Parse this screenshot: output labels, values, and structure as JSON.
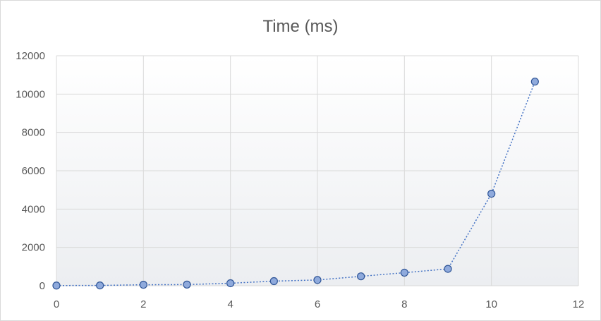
{
  "chart_data": {
    "type": "scatter",
    "title": "Time (ms)",
    "xlabel": "",
    "ylabel": "",
    "xlim": [
      0,
      12
    ],
    "ylim": [
      0,
      12000
    ],
    "x_ticks": [
      0,
      2,
      4,
      6,
      8,
      10,
      12
    ],
    "y_ticks": [
      0,
      2000,
      4000,
      6000,
      8000,
      10000,
      12000
    ],
    "grid": true,
    "lines": "dotted",
    "series": [
      {
        "x": [
          0,
          1,
          2,
          3,
          4,
          5,
          6,
          7,
          8,
          9,
          10,
          11
        ],
        "y": [
          10,
          15,
          50,
          60,
          130,
          240,
          300,
          490,
          680,
          880,
          4800,
          10650
        ]
      }
    ],
    "colors": {
      "line": "#4472c4",
      "marker_fill": "#8faadc",
      "marker_stroke": "#2f5597",
      "plot_background_bottom": "#eceef1"
    }
  }
}
